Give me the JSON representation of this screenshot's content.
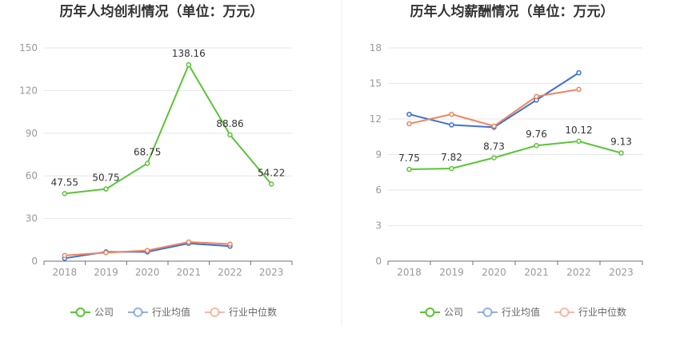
{
  "chart_data": [
    {
      "type": "line",
      "title": "历年人均创利情况（单位：万元）",
      "categories": [
        "2018",
        "2019",
        "2020",
        "2021",
        "2022",
        "2023"
      ],
      "ylim": [
        0,
        150
      ],
      "yticks": [
        "0",
        "30",
        "60",
        "90",
        "120",
        "150"
      ],
      "grid": true,
      "legend_position": "bottom",
      "series": [
        {
          "name": "公司",
          "color": "#5ac437",
          "values": [
            47.55,
            50.75,
            68.75,
            138.16,
            88.86,
            54.22
          ],
          "labels": [
            "47.55",
            "50.75",
            "68.75",
            "138.16",
            "88.86",
            "54.22"
          ]
        },
        {
          "name": "行业均值",
          "color": "#3d6fd6",
          "values": [
            2,
            6.5,
            6.5,
            12.5,
            10.5,
            null
          ]
        },
        {
          "name": "行业中位数",
          "color": "#f0845c",
          "values": [
            4,
            6,
            7.5,
            13.5,
            12,
            null
          ]
        }
      ]
    },
    {
      "type": "line",
      "title": "历年人均薪酬情况（单位：万元）",
      "categories": [
        "2018",
        "2019",
        "2020",
        "2021",
        "2022",
        "2023"
      ],
      "ylim": [
        0,
        18
      ],
      "yticks": [
        "0",
        "3",
        "6",
        "9",
        "12",
        "15",
        "18"
      ],
      "grid": true,
      "legend_position": "bottom",
      "series": [
        {
          "name": "公司",
          "color": "#5ac437",
          "values": [
            7.75,
            7.82,
            8.73,
            9.76,
            10.12,
            9.13
          ],
          "labels": [
            "7.75",
            "7.82",
            "8.73",
            "9.76",
            "10.12",
            "9.13"
          ]
        },
        {
          "name": "行业均值",
          "color": "#3d6fd6",
          "values": [
            12.4,
            11.5,
            11.3,
            13.6,
            15.9,
            null
          ]
        },
        {
          "name": "行业中位数",
          "color": "#f0845c",
          "values": [
            11.6,
            12.4,
            11.4,
            13.9,
            14.5,
            null
          ]
        }
      ]
    }
  ]
}
